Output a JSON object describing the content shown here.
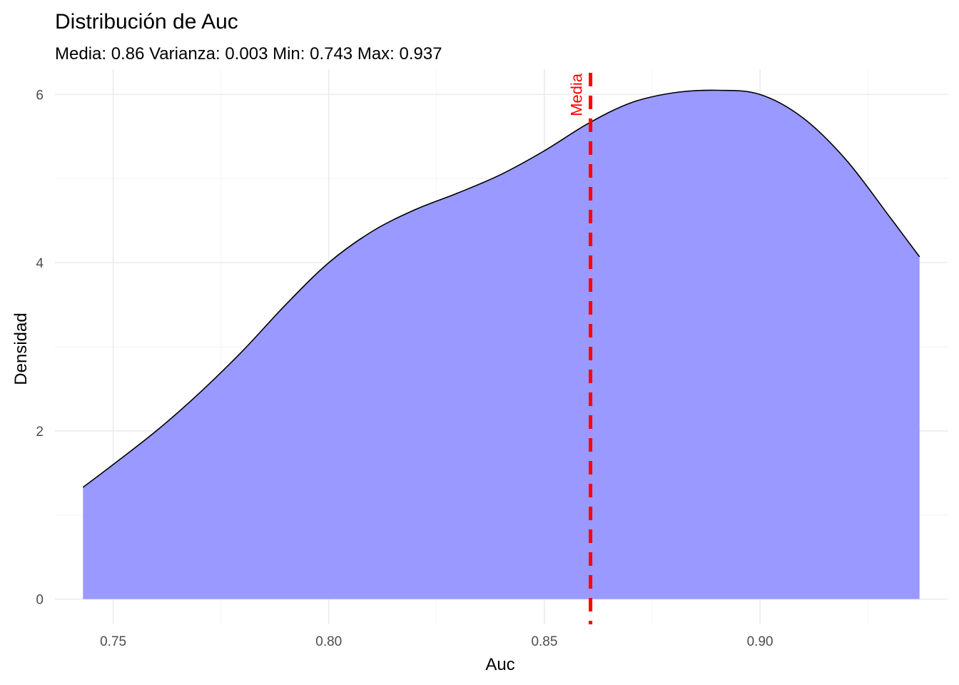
{
  "chart_data": {
    "type": "area",
    "title": "Distribución de Auc",
    "subtitle": "Media: 0.86 Varianza: 0.003 Min: 0.743 Max: 0.937",
    "xlabel": "Auc",
    "ylabel": "Densidad",
    "xlim": [
      0.7365,
      0.9435
    ],
    "ylim": [
      -0.3,
      6.3
    ],
    "x_ticks": [
      0.75,
      0.8,
      0.85,
      0.9
    ],
    "x_tick_labels": [
      "0.75",
      "0.80",
      "0.85",
      "0.90"
    ],
    "y_ticks": [
      0,
      2,
      4,
      6
    ],
    "y_tick_labels": [
      "0",
      "2",
      "4",
      "6"
    ],
    "grid": true,
    "fill_color": "#9999ff",
    "line_color": "#000000",
    "mean_line": {
      "x": 0.8607,
      "label": "Media",
      "color": "#ff0000",
      "style": "dashed"
    },
    "x": [
      0.743,
      0.75,
      0.76,
      0.77,
      0.78,
      0.79,
      0.8,
      0.81,
      0.82,
      0.83,
      0.84,
      0.85,
      0.86,
      0.87,
      0.88,
      0.89,
      0.9,
      0.91,
      0.92,
      0.93,
      0.937
    ],
    "y": [
      1.33,
      1.6,
      2.0,
      2.45,
      2.95,
      3.5,
      4.0,
      4.37,
      4.63,
      4.83,
      5.05,
      5.33,
      5.65,
      5.9,
      6.02,
      6.05,
      6.0,
      5.72,
      5.22,
      4.55,
      4.07
    ]
  }
}
